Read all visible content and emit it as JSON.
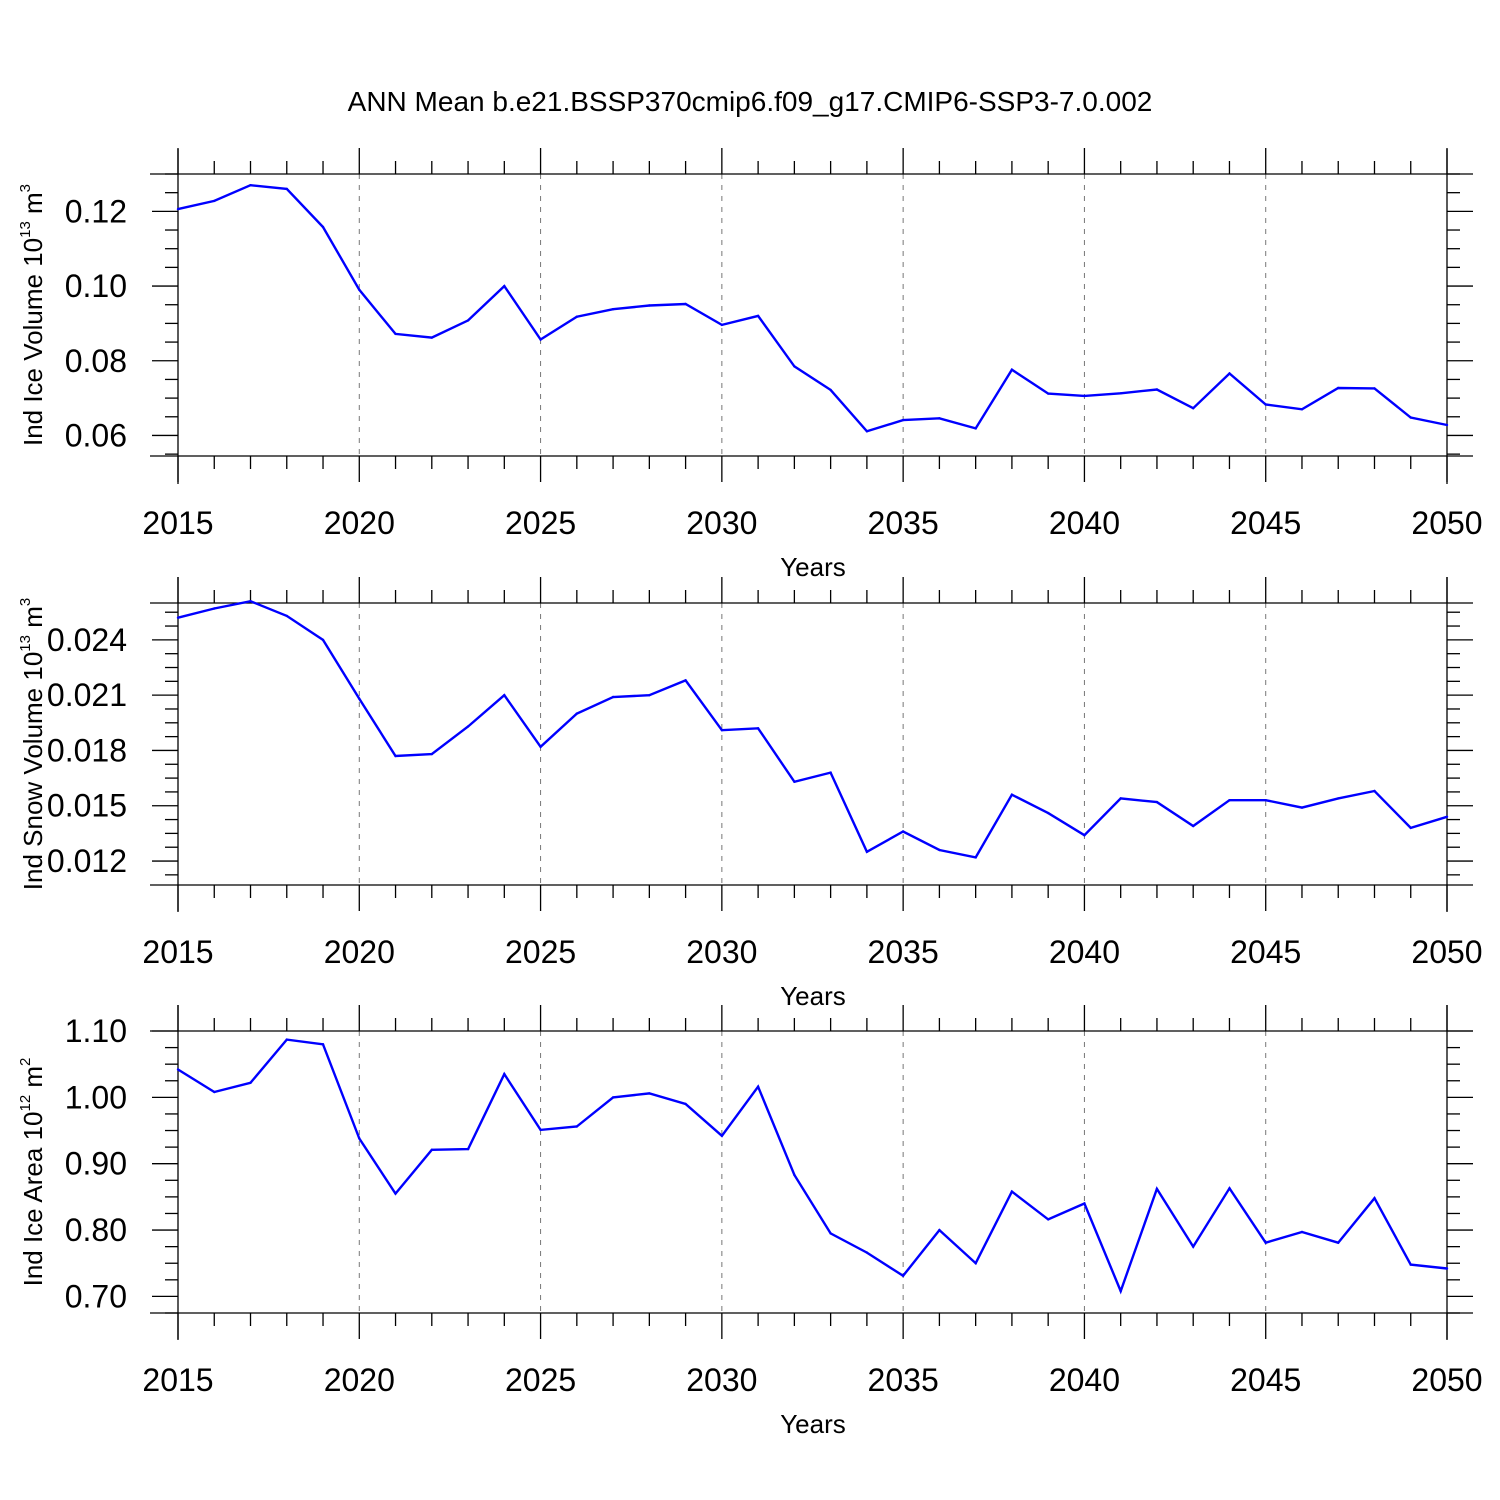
{
  "title": "ANN Mean b.e21.BSSP370cmip6.f09_g17.CMIP6-SSP3-7.0.002",
  "line_color": "#0000ff",
  "chart_data": [
    {
      "type": "line",
      "ylabel": {
        "prefix": "Ind Ice Volume 10",
        "exp": "13",
        "unit": " m",
        "unit_exp": "3"
      },
      "xlabel": "Years",
      "xlim": [
        2015,
        2050
      ],
      "ylim": [
        0.0545,
        0.13
      ],
      "yticks": [
        0.06,
        0.08,
        0.1,
        0.12
      ],
      "ytick_labels": [
        "0.06",
        "0.08",
        "0.10",
        "0.12"
      ],
      "yminor": 0.005,
      "xticks": [
        2015,
        2020,
        2025,
        2030,
        2035,
        2040,
        2045,
        2050
      ],
      "xtick_labels": [
        "2015",
        "2020",
        "2025",
        "2030",
        "2035",
        "2040",
        "2045",
        "2050"
      ],
      "x": [
        2015,
        2016,
        2017,
        2018,
        2019,
        2020,
        2021,
        2022,
        2023,
        2024,
        2025,
        2026,
        2027,
        2028,
        2029,
        2030,
        2031,
        2032,
        2033,
        2034,
        2035,
        2036,
        2037,
        2038,
        2039,
        2040,
        2041,
        2042,
        2043,
        2044,
        2045,
        2046,
        2047,
        2048,
        2049,
        2050
      ],
      "y": [
        0.1206,
        0.1228,
        0.127,
        0.126,
        0.1158,
        0.099,
        0.0872,
        0.0862,
        0.0908,
        0.1,
        0.0857,
        0.0918,
        0.0938,
        0.0948,
        0.0952,
        0.0896,
        0.092,
        0.0785,
        0.0722,
        0.0611,
        0.0641,
        0.0646,
        0.0619,
        0.0776,
        0.0712,
        0.0706,
        0.0713,
        0.0723,
        0.0673,
        0.0766,
        0.0683,
        0.067,
        0.0727,
        0.0726,
        0.0648,
        0.0628
      ]
    },
    {
      "type": "line",
      "ylabel": {
        "prefix": "Ind Snow Volume 10",
        "exp": "13",
        "unit": " m",
        "unit_exp": "3"
      },
      "xlabel": "Years",
      "xlim": [
        2015,
        2050
      ],
      "ylim": [
        0.0107,
        0.026
      ],
      "yticks": [
        0.012,
        0.015,
        0.018,
        0.021,
        0.024
      ],
      "ytick_labels": [
        "0.012",
        "0.015",
        "0.018",
        "0.021",
        "0.024"
      ],
      "yminor": 0.00075,
      "xticks": [
        2015,
        2020,
        2025,
        2030,
        2035,
        2040,
        2045,
        2050
      ],
      "xtick_labels": [
        "2015",
        "2020",
        "2025",
        "2030",
        "2035",
        "2040",
        "2045",
        "2050"
      ],
      "x": [
        2015,
        2016,
        2017,
        2018,
        2019,
        2020,
        2021,
        2022,
        2023,
        2024,
        2025,
        2026,
        2027,
        2028,
        2029,
        2030,
        2031,
        2032,
        2033,
        2034,
        2035,
        2036,
        2037,
        2038,
        2039,
        2040,
        2041,
        2042,
        2043,
        2044,
        2045,
        2046,
        2047,
        2048,
        2049,
        2050
      ],
      "y": [
        0.0252,
        0.0257,
        0.0261,
        0.0253,
        0.024,
        0.0208,
        0.0177,
        0.0178,
        0.0193,
        0.021,
        0.0182,
        0.02,
        0.0209,
        0.021,
        0.0218,
        0.0191,
        0.0192,
        0.0163,
        0.0168,
        0.0125,
        0.0136,
        0.0126,
        0.0122,
        0.0156,
        0.0146,
        0.0134,
        0.0154,
        0.0152,
        0.0139,
        0.0153,
        0.0153,
        0.0149,
        0.0154,
        0.0158,
        0.0138,
        0.0144
      ]
    },
    {
      "type": "line",
      "ylabel": {
        "prefix": "Ind Ice Area 10",
        "exp": "12",
        "unit": " m",
        "unit_exp": "2"
      },
      "xlabel": "Years",
      "xlim": [
        2015,
        2050
      ],
      "ylim": [
        0.675,
        1.1
      ],
      "yticks": [
        0.7,
        0.8,
        0.9,
        1.0,
        1.1
      ],
      "ytick_labels": [
        "0.70",
        "0.80",
        "0.90",
        "1.00",
        "1.10"
      ],
      "yminor": 0.025,
      "xticks": [
        2015,
        2020,
        2025,
        2030,
        2035,
        2040,
        2045,
        2050
      ],
      "xtick_labels": [
        "2015",
        "2020",
        "2025",
        "2030",
        "2035",
        "2040",
        "2045",
        "2050"
      ],
      "x": [
        2015,
        2016,
        2017,
        2018,
        2019,
        2020,
        2021,
        2022,
        2023,
        2024,
        2025,
        2026,
        2027,
        2028,
        2029,
        2030,
        2031,
        2032,
        2033,
        2034,
        2035,
        2036,
        2037,
        2038,
        2039,
        2040,
        2041,
        2042,
        2043,
        2044,
        2045,
        2046,
        2047,
        2048,
        2049,
        2050
      ],
      "y": [
        1.042,
        1.008,
        1.022,
        1.087,
        1.08,
        0.938,
        0.855,
        0.921,
        0.922,
        1.035,
        0.951,
        0.956,
        1.0,
        1.006,
        0.99,
        0.942,
        1.016,
        0.883,
        0.795,
        0.766,
        0.731,
        0.8,
        0.75,
        0.858,
        0.816,
        0.84,
        0.708,
        0.862,
        0.775,
        0.863,
        0.781,
        0.797,
        0.781,
        0.848,
        0.748,
        0.742
      ]
    }
  ]
}
